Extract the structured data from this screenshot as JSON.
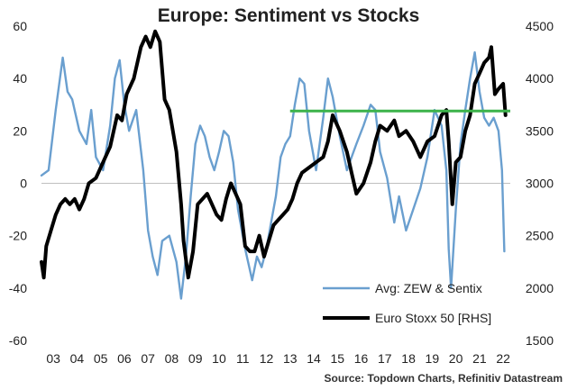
{
  "colors": {
    "sentiment": "#6a9fcf",
    "stocks": "#000000",
    "threshold": "#3cb34a",
    "grid": "#bfbfbf"
  },
  "chart_data": {
    "type": "line",
    "title": "Europe: Sentiment vs Stocks",
    "source": "Source: Topdown Charts, Refinitiv Datastream",
    "x_range": [
      2003.0,
      2022.8
    ],
    "x_tick_values": [
      2003.5,
      2004.5,
      2005.5,
      2006.5,
      2007.5,
      2008.5,
      2009.5,
      2010.5,
      2011.5,
      2012.5,
      2013.5,
      2014.5,
      2015.5,
      2016.5,
      2017.5,
      2018.5,
      2019.5,
      2020.5,
      2021.5,
      2022.5
    ],
    "x_tick_labels": [
      "03",
      "04",
      "05",
      "06",
      "07",
      "08",
      "09",
      "10",
      "11",
      "12",
      "13",
      "14",
      "15",
      "16",
      "17",
      "18",
      "19",
      "20",
      "21",
      "22"
    ],
    "y_left": {
      "range": [
        -60,
        60
      ],
      "ticks": [
        -60,
        -40,
        -20,
        0,
        20,
        40,
        60
      ],
      "tick_labels": [
        "-60",
        "-40",
        "-20",
        "0",
        "20",
        "40",
        "60"
      ],
      "grid_at": [
        0
      ]
    },
    "y_right": {
      "range": [
        1500,
        4500
      ],
      "ticks": [
        1500,
        2000,
        2500,
        3000,
        3500,
        4000,
        4500
      ],
      "tick_labels": [
        "1500",
        "2000",
        "2500",
        "3000",
        "3500",
        "4000",
        "4500"
      ]
    },
    "threshold": {
      "axis": "right",
      "value": 3690,
      "x_start": 2013.5,
      "x_end": 2022.8,
      "name": ""
    },
    "series": [
      {
        "name": "Avg: ZEW & Sentix",
        "axis": "left",
        "x": [
          2003.0,
          2003.3,
          2003.6,
          2003.9,
          2004.1,
          2004.3,
          2004.6,
          2004.9,
          2005.1,
          2005.3,
          2005.6,
          2005.9,
          2006.1,
          2006.3,
          2006.5,
          2006.7,
          2007.0,
          2007.3,
          2007.5,
          2007.7,
          2007.9,
          2008.1,
          2008.4,
          2008.7,
          2008.9,
          2009.1,
          2009.3,
          2009.5,
          2009.7,
          2009.9,
          2010.1,
          2010.3,
          2010.5,
          2010.7,
          2010.9,
          2011.1,
          2011.3,
          2011.6,
          2011.9,
          2012.1,
          2012.3,
          2012.5,
          2012.7,
          2012.9,
          2013.1,
          2013.3,
          2013.5,
          2013.7,
          2013.9,
          2014.1,
          2014.3,
          2014.6,
          2014.9,
          2015.1,
          2015.3,
          2015.6,
          2015.9,
          2016.1,
          2016.3,
          2016.6,
          2016.9,
          2017.1,
          2017.3,
          2017.6,
          2017.9,
          2018.1,
          2018.4,
          2018.7,
          2019.0,
          2019.3,
          2019.6,
          2019.9,
          2020.1,
          2020.2,
          2020.3,
          2020.5,
          2020.7,
          2020.9,
          2021.1,
          2021.3,
          2021.5,
          2021.7,
          2021.9,
          2022.1,
          2022.3,
          2022.45,
          2022.55
        ],
        "values": [
          3,
          5,
          28,
          48,
          35,
          32,
          20,
          15,
          28,
          10,
          5,
          22,
          40,
          47,
          30,
          20,
          28,
          5,
          -18,
          -28,
          -35,
          -22,
          -20,
          -30,
          -44,
          -28,
          -5,
          15,
          22,
          18,
          10,
          5,
          12,
          20,
          18,
          8,
          -10,
          -25,
          -37,
          -28,
          -32,
          -25,
          -15,
          -5,
          10,
          15,
          18,
          30,
          40,
          38,
          20,
          5,
          25,
          40,
          33,
          18,
          5,
          10,
          15,
          22,
          30,
          28,
          12,
          2,
          -15,
          -5,
          -18,
          -10,
          -2,
          10,
          28,
          22,
          5,
          -25,
          -40,
          -10,
          15,
          28,
          40,
          50,
          35,
          25,
          22,
          25,
          20,
          5,
          -26
        ]
      },
      {
        "name": "Euro Stoxx 50 [RHS]",
        "axis": "right",
        "x": [
          2003.0,
          2003.1,
          2003.2,
          2003.4,
          2003.6,
          2003.8,
          2004.0,
          2004.2,
          2004.4,
          2004.6,
          2004.8,
          2005.0,
          2005.3,
          2005.6,
          2005.9,
          2006.2,
          2006.4,
          2006.6,
          2006.9,
          2007.2,
          2007.4,
          2007.6,
          2007.8,
          2008.0,
          2008.2,
          2008.4,
          2008.7,
          2008.9,
          2009.0,
          2009.2,
          2009.4,
          2009.6,
          2009.8,
          2010.0,
          2010.2,
          2010.4,
          2010.6,
          2010.8,
          2011.0,
          2011.2,
          2011.4,
          2011.6,
          2011.8,
          2012.0,
          2012.2,
          2012.4,
          2012.6,
          2012.8,
          2013.0,
          2013.2,
          2013.4,
          2013.6,
          2013.8,
          2014.0,
          2014.3,
          2014.6,
          2014.9,
          2015.1,
          2015.3,
          2015.6,
          2015.9,
          2016.1,
          2016.3,
          2016.6,
          2016.9,
          2017.1,
          2017.3,
          2017.6,
          2017.9,
          2018.1,
          2018.4,
          2018.7,
          2019.0,
          2019.3,
          2019.6,
          2019.9,
          2020.1,
          2020.2,
          2020.35,
          2020.5,
          2020.7,
          2020.9,
          2021.1,
          2021.3,
          2021.5,
          2021.7,
          2021.9,
          2022.0,
          2022.15,
          2022.3,
          2022.5,
          2022.6
        ],
        "values": [
          2250,
          2100,
          2400,
          2550,
          2700,
          2800,
          2850,
          2800,
          2850,
          2750,
          2850,
          3000,
          3050,
          3200,
          3350,
          3650,
          3600,
          3850,
          4000,
          4300,
          4400,
          4300,
          4450,
          4350,
          3800,
          3700,
          3300,
          2800,
          2450,
          2100,
          2350,
          2800,
          2850,
          2900,
          2800,
          2700,
          2650,
          2850,
          3000,
          2900,
          2800,
          2400,
          2350,
          2350,
          2500,
          2300,
          2450,
          2600,
          2650,
          2700,
          2750,
          2850,
          3000,
          3100,
          3150,
          3200,
          3250,
          3400,
          3650,
          3500,
          3300,
          3100,
          2900,
          3000,
          3200,
          3400,
          3550,
          3500,
          3600,
          3450,
          3500,
          3400,
          3250,
          3400,
          3450,
          3650,
          3700,
          3400,
          2800,
          3200,
          3250,
          3500,
          3650,
          3950,
          4050,
          4150,
          4200,
          4300,
          3850,
          3900,
          3950,
          3650
        ]
      }
    ]
  }
}
